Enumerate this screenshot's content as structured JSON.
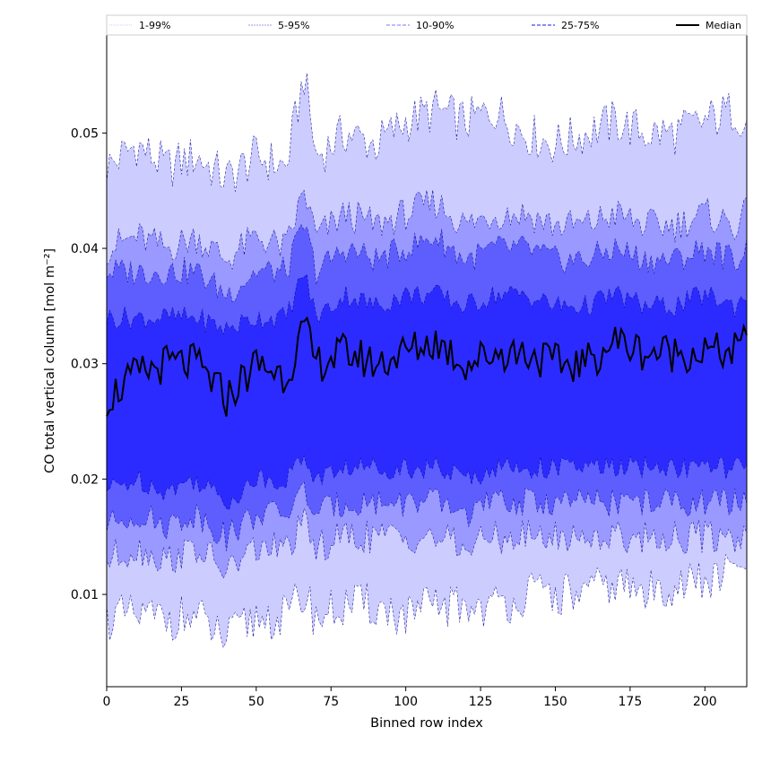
{
  "chart_data": {
    "type": "area",
    "xlabel": "Binned row index",
    "ylabel": "CO total vertical column [mol m⁻²]",
    "xlim": [
      0,
      214
    ],
    "ylim": [
      0.002,
      0.0585
    ],
    "xticks": [
      0,
      25,
      50,
      75,
      100,
      125,
      150,
      175,
      200
    ],
    "yticks": [
      0.01,
      0.02,
      0.03,
      0.04,
      0.05
    ],
    "ytick_labels": [
      "0.01",
      "0.02",
      "0.03",
      "0.04",
      "0.05"
    ],
    "legend_position": "top (spanning full width)",
    "legend": [
      {
        "label": "1-99%",
        "style": "thin dotted"
      },
      {
        "label": "5-95%",
        "style": "thin dashed"
      },
      {
        "label": "10-90%",
        "style": "dashed"
      },
      {
        "label": "25-75%",
        "style": "dashed"
      },
      {
        "label": "Median",
        "style": "solid black"
      }
    ],
    "colors": {
      "band_1_99": "#ccccff",
      "band_5_95": "#9999ff",
      "band_10_90": "#5e5eff",
      "band_25_75": "#2b2bff",
      "median": "#000000"
    },
    "x_sampled": [
      0,
      10,
      20,
      30,
      40,
      50,
      60,
      66,
      70,
      80,
      90,
      100,
      110,
      120,
      130,
      140,
      150,
      160,
      170,
      180,
      190,
      200,
      210,
      214
    ],
    "series": [
      {
        "name": "1-99% upper",
        "values": [
          0.047,
          0.049,
          0.047,
          0.048,
          0.046,
          0.048,
          0.047,
          0.055,
          0.048,
          0.05,
          0.049,
          0.051,
          0.052,
          0.051,
          0.052,
          0.05,
          0.049,
          0.05,
          0.051,
          0.05,
          0.05,
          0.051,
          0.052,
          0.051
        ]
      },
      {
        "name": "5-95% upper",
        "values": [
          0.04,
          0.041,
          0.04,
          0.041,
          0.039,
          0.041,
          0.04,
          0.045,
          0.041,
          0.043,
          0.042,
          0.043,
          0.044,
          0.042,
          0.043,
          0.043,
          0.042,
          0.042,
          0.043,
          0.042,
          0.042,
          0.043,
          0.042,
          0.043
        ]
      },
      {
        "name": "10-90% upper",
        "values": [
          0.038,
          0.038,
          0.038,
          0.038,
          0.036,
          0.038,
          0.038,
          0.042,
          0.038,
          0.04,
          0.039,
          0.04,
          0.041,
          0.039,
          0.04,
          0.04,
          0.039,
          0.039,
          0.04,
          0.039,
          0.039,
          0.04,
          0.039,
          0.04
        ]
      },
      {
        "name": "25-75% upper",
        "values": [
          0.034,
          0.034,
          0.034,
          0.034,
          0.033,
          0.034,
          0.034,
          0.038,
          0.034,
          0.036,
          0.035,
          0.036,
          0.036,
          0.035,
          0.036,
          0.036,
          0.035,
          0.035,
          0.036,
          0.035,
          0.035,
          0.036,
          0.035,
          0.036
        ]
      },
      {
        "name": "Median",
        "values": [
          0.027,
          0.029,
          0.03,
          0.03,
          0.027,
          0.03,
          0.029,
          0.033,
          0.03,
          0.031,
          0.03,
          0.031,
          0.032,
          0.03,
          0.031,
          0.031,
          0.03,
          0.03,
          0.032,
          0.031,
          0.031,
          0.031,
          0.031,
          0.032
        ]
      },
      {
        "name": "25-75% lower",
        "values": [
          0.019,
          0.02,
          0.019,
          0.02,
          0.018,
          0.02,
          0.02,
          0.022,
          0.02,
          0.021,
          0.021,
          0.021,
          0.021,
          0.02,
          0.021,
          0.021,
          0.021,
          0.021,
          0.021,
          0.021,
          0.021,
          0.021,
          0.021,
          0.021
        ]
      },
      {
        "name": "10-90% lower",
        "values": [
          0.016,
          0.017,
          0.016,
          0.017,
          0.015,
          0.017,
          0.017,
          0.019,
          0.017,
          0.018,
          0.018,
          0.018,
          0.018,
          0.017,
          0.018,
          0.018,
          0.018,
          0.018,
          0.018,
          0.018,
          0.018,
          0.018,
          0.018,
          0.018
        ]
      },
      {
        "name": "5-95% lower",
        "values": [
          0.013,
          0.014,
          0.013,
          0.014,
          0.012,
          0.014,
          0.014,
          0.016,
          0.014,
          0.015,
          0.015,
          0.015,
          0.015,
          0.014,
          0.015,
          0.015,
          0.015,
          0.015,
          0.015,
          0.015,
          0.015,
          0.015,
          0.015,
          0.015
        ]
      },
      {
        "name": "1-99% lower",
        "values": [
          0.008,
          0.008,
          0.008,
          0.008,
          0.006,
          0.008,
          0.008,
          0.01,
          0.008,
          0.009,
          0.009,
          0.008,
          0.009,
          0.009,
          0.009,
          0.01,
          0.01,
          0.01,
          0.011,
          0.01,
          0.011,
          0.011,
          0.012,
          0.013
        ]
      }
    ]
  }
}
